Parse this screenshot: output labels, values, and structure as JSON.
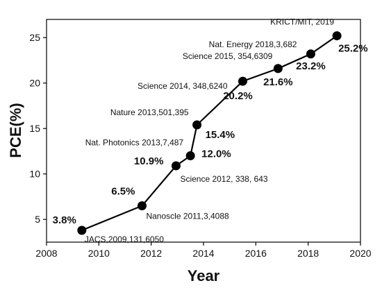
{
  "chart_data": {
    "type": "line",
    "title": "",
    "xlabel": "Year",
    "ylabel": "PCE(%)",
    "xlim": [
      2008,
      2020
    ],
    "ylim": [
      2.5,
      27
    ],
    "xticks": [
      2008,
      2010,
      2012,
      2014,
      2016,
      2018,
      2020
    ],
    "yticks": [
      5,
      10,
      15,
      20,
      25
    ],
    "grid": false,
    "series": [
      {
        "color": "#000000",
        "points": [
          {
            "x": 2009.35,
            "y": 3.8,
            "label": "3.8%",
            "ref": "JACS,2009,131,6050"
          },
          {
            "x": 2011.65,
            "y": 6.5,
            "label": "6.5%",
            "ref": "Nanoscle 2011,3,4088"
          },
          {
            "x": 2012.95,
            "y": 10.9,
            "label": "10.9%",
            "ref": "Science 2012, 338, 643"
          },
          {
            "x": 2013.5,
            "y": 12.0,
            "label": "12.0%",
            "ref": "Nat. Photonics 2013,7,487"
          },
          {
            "x": 2013.75,
            "y": 15.4,
            "label": "15.4%",
            "ref": "Nature 2013,501,395"
          },
          {
            "x": 2015.5,
            "y": 20.2,
            "label": "20.2%",
            "ref": "Science 2014, 348,6240"
          },
          {
            "x": 2016.85,
            "y": 21.6,
            "label": "21.6%",
            "ref": "Science 2015, 354,6309"
          },
          {
            "x": 2018.1,
            "y": 23.2,
            "label": "23.2%",
            "ref": "Nat. Energy 2018,3,682"
          },
          {
            "x": 2019.1,
            "y": 25.2,
            "label": "25.2%",
            "ref": "KRICT/MIT, 2019"
          }
        ]
      }
    ]
  }
}
